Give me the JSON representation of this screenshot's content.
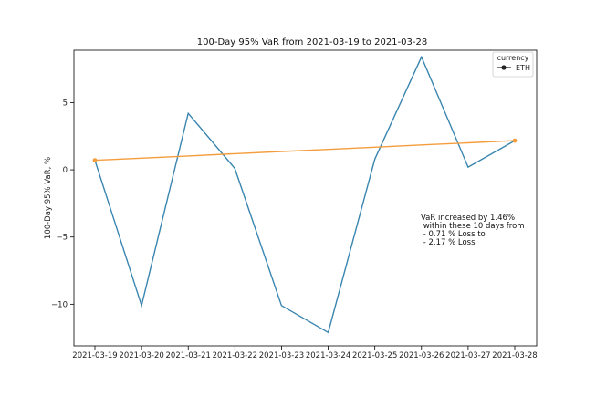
{
  "chart_data": {
    "type": "line",
    "title": "100-Day 95% VaR from 2021-03-19 to 2021-03-28",
    "xlabel": "",
    "ylabel": "100-Day 95% VaR, %",
    "x": [
      "2021-03-19",
      "2021-03-20",
      "2021-03-21",
      "2021-03-22",
      "2021-03-23",
      "2021-03-24",
      "2021-03-25",
      "2021-03-26",
      "2021-03-27",
      "2021-03-28"
    ],
    "ylim": [
      -13.1,
      8.9
    ],
    "yticks": [
      -10,
      -5,
      0,
      5
    ],
    "ytick_labels": [
      "−10",
      "−5",
      "0",
      "5"
    ],
    "series": [
      {
        "name": "",
        "color": "#3a86b0",
        "values": [
          0.71,
          -10.1,
          4.2,
          0.1,
          -10.1,
          -12.1,
          0.8,
          8.4,
          0.2,
          2.17
        ]
      },
      {
        "name": "",
        "color": "#f59d3d",
        "marker": "dot",
        "values": [
          0.71,
          0.87,
          1.03,
          1.2,
          1.36,
          1.52,
          1.68,
          1.85,
          2.01,
          2.17
        ]
      }
    ],
    "legend": {
      "title": "currency",
      "entries": [
        "ETH"
      ],
      "placement": "top-right"
    },
    "annotation_lines": [
      "VaR increased by 1.46%",
      " within these 10 days from",
      " - 0.71 % Loss to",
      " - 2.17 % Loss"
    ],
    "grid": false
  }
}
